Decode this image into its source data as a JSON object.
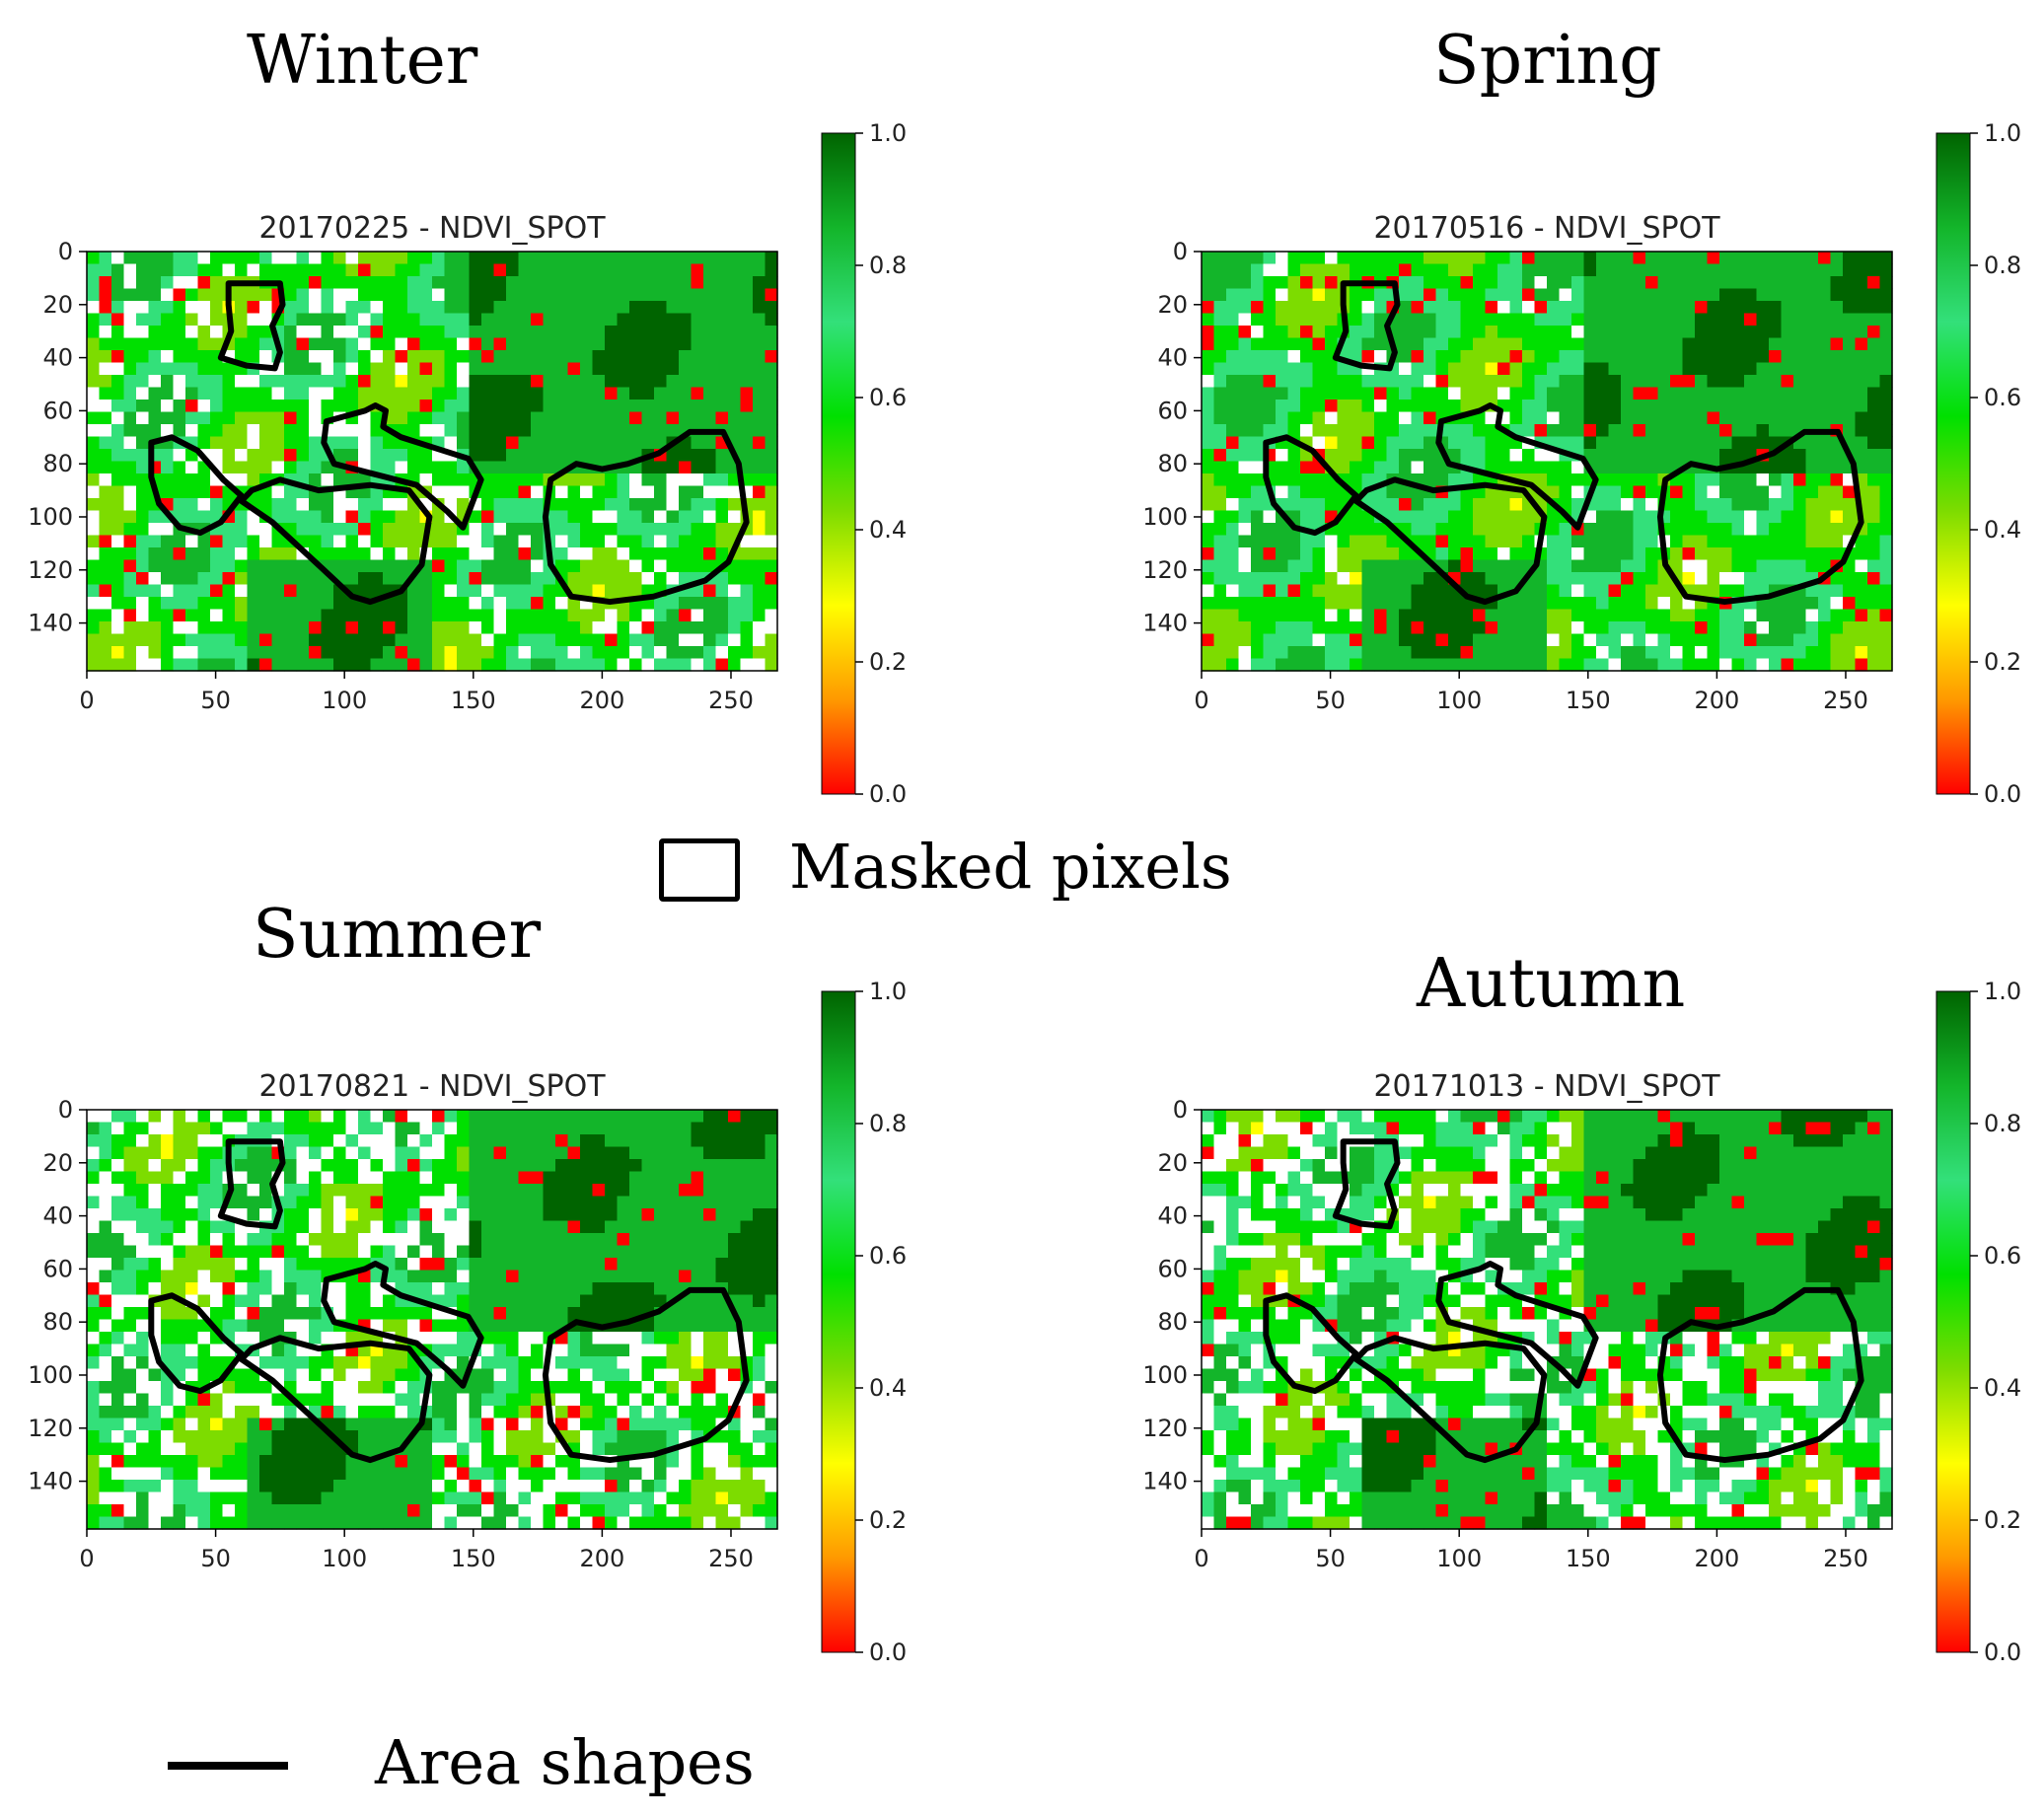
{
  "legend": {
    "masked_pixels_label": "Masked pixels",
    "area_shapes_label": "Area shapes"
  },
  "colors": {
    "scale": [
      "#ff0000",
      "#ff9900",
      "#ffff00",
      "#7ddc00",
      "#00e000",
      "#33e07a",
      "#13b52a",
      "#006400"
    ],
    "masked": "#ffffff",
    "outline": "#000000"
  },
  "chart_data": [
    {
      "type": "heatmap",
      "season": "Winter",
      "title": "20170225 - NDVI_SPOT",
      "xlim": [
        0,
        268
      ],
      "ylim": [
        158,
        0
      ],
      "x_ticks": [
        "0",
        "50",
        "100",
        "150",
        "200",
        "250"
      ],
      "y_ticks": [
        "0",
        "20",
        "40",
        "60",
        "80",
        "100",
        "120",
        "140"
      ],
      "colorbar": {
        "range": [
          0.0,
          1.0
        ],
        "ticks": [
          "0.0",
          "0.2",
          "0.4",
          "0.6",
          "0.8",
          "1.0"
        ]
      },
      "masked_share": "moderate"
    },
    {
      "type": "heatmap",
      "season": "Spring",
      "title": "20170516 - NDVI_SPOT",
      "xlim": [
        0,
        268
      ],
      "ylim": [
        158,
        0
      ],
      "x_ticks": [
        "0",
        "50",
        "100",
        "150",
        "200",
        "250"
      ],
      "y_ticks": [
        "0",
        "20",
        "40",
        "60",
        "80",
        "100",
        "120",
        "140"
      ],
      "colorbar": {
        "range": [
          0.0,
          1.0
        ],
        "ticks": [
          "0.0",
          "0.2",
          "0.4",
          "0.6",
          "0.8",
          "1.0"
        ]
      },
      "masked_share": "low"
    },
    {
      "type": "heatmap",
      "season": "Summer",
      "title": "20170821 - NDVI_SPOT",
      "xlim": [
        0,
        268
      ],
      "ylim": [
        158,
        0
      ],
      "x_ticks": [
        "0",
        "50",
        "100",
        "150",
        "200",
        "250"
      ],
      "y_ticks": [
        "0",
        "20",
        "40",
        "60",
        "80",
        "100",
        "120",
        "140"
      ],
      "colorbar": {
        "range": [
          0.0,
          1.0
        ],
        "ticks": [
          "0.0",
          "0.2",
          "0.4",
          "0.6",
          "0.8",
          "1.0"
        ]
      },
      "masked_share": "high"
    },
    {
      "type": "heatmap",
      "season": "Autumn",
      "title": "20171013 - NDVI_SPOT",
      "xlim": [
        0,
        268
      ],
      "ylim": [
        158,
        0
      ],
      "x_ticks": [
        "0",
        "50",
        "100",
        "150",
        "200",
        "250"
      ],
      "y_ticks": [
        "0",
        "20",
        "40",
        "60",
        "80",
        "100",
        "120",
        "140"
      ],
      "colorbar": {
        "range": [
          0.0,
          1.0
        ],
        "ticks": [
          "0.0",
          "0.2",
          "0.4",
          "0.6",
          "0.8",
          "1.0"
        ]
      },
      "masked_share": "high"
    }
  ]
}
